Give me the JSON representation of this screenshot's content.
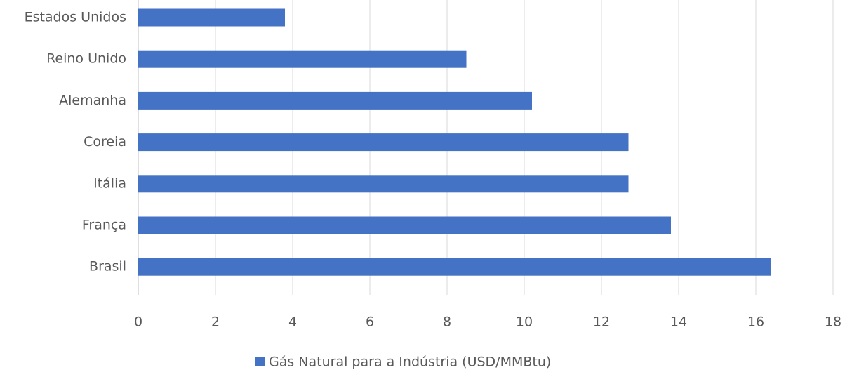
{
  "chart_data": {
    "type": "bar",
    "orientation": "horizontal",
    "categories": [
      "Estados Unidos",
      "Reino Unido",
      "Alemanha",
      "Coreia",
      "Itália",
      "França",
      "Brasil"
    ],
    "series": [
      {
        "name": "Gás Natural para a Indústria (USD/MMBtu)",
        "color": "#4472c4",
        "values": [
          3.8,
          8.5,
          10.2,
          12.7,
          12.7,
          13.8,
          16.4
        ]
      }
    ],
    "xlim": [
      0,
      18
    ],
    "xticks": [
      0,
      2,
      4,
      6,
      8,
      10,
      12,
      14,
      16,
      18
    ],
    "grid": true,
    "legend": "bottom"
  }
}
